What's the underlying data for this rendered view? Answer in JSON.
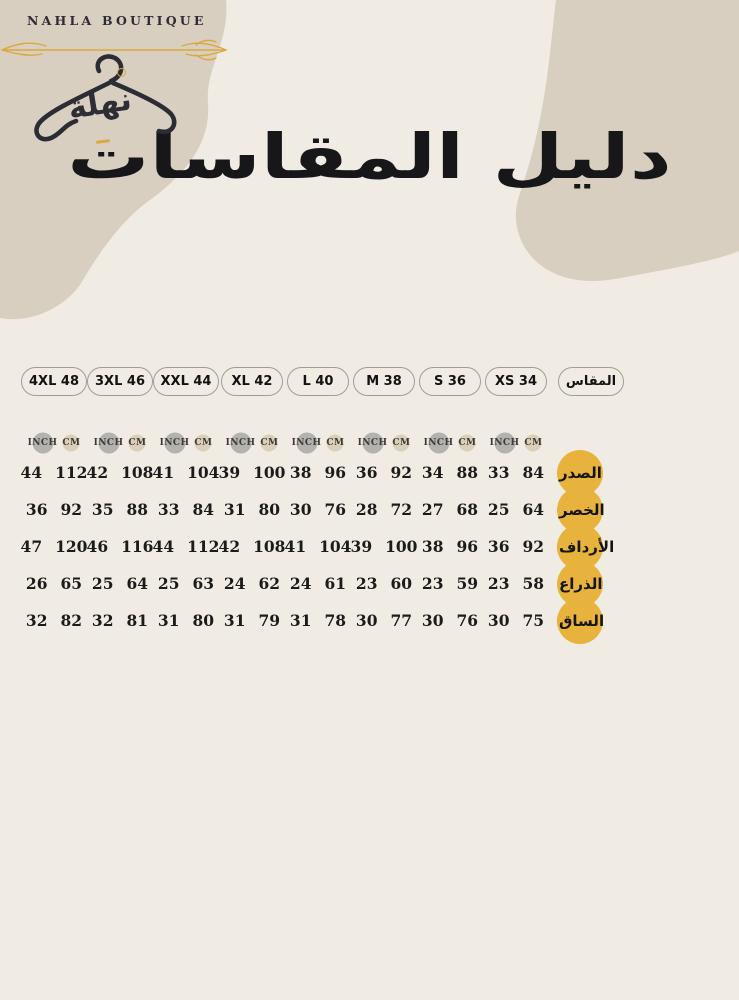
{
  "brand": {
    "name": "NAHLA BOUTIQUE",
    "calligraphy": "نهلة"
  },
  "title": "دليل المقاسات",
  "size_row": {
    "label": "المقاس",
    "sizes": [
      "4XL 48",
      "3XL 46",
      "XXL 44",
      "XL 42",
      "L 40",
      "M 38",
      "S 36",
      "XS 34"
    ]
  },
  "unit_header": {
    "inch": "INCH",
    "cm": "CM"
  },
  "chart_data": {
    "type": "table",
    "columns": [
      "4XL 48",
      "3XL 46",
      "XXL 44",
      "XL 42",
      "L 40",
      "M 38",
      "S 36",
      "XS 34"
    ],
    "unit_pairs": [
      "INCH",
      "CM"
    ],
    "rows": [
      {
        "label": "الصدر",
        "values": [
          [
            44,
            112
          ],
          [
            42,
            108
          ],
          [
            41,
            104
          ],
          [
            39,
            100
          ],
          [
            38,
            96
          ],
          [
            36,
            92
          ],
          [
            34,
            88
          ],
          [
            33,
            84
          ]
        ]
      },
      {
        "label": "الخصر",
        "values": [
          [
            36,
            92
          ],
          [
            35,
            88
          ],
          [
            33,
            84
          ],
          [
            31,
            80
          ],
          [
            30,
            76
          ],
          [
            28,
            72
          ],
          [
            27,
            68
          ],
          [
            25,
            64
          ]
        ]
      },
      {
        "label": "الأرداف",
        "values": [
          [
            47,
            120
          ],
          [
            46,
            116
          ],
          [
            44,
            112
          ],
          [
            42,
            108
          ],
          [
            41,
            104
          ],
          [
            39,
            100
          ],
          [
            38,
            96
          ],
          [
            36,
            92
          ]
        ]
      },
      {
        "label": "الذراع",
        "values": [
          [
            26,
            65
          ],
          [
            25,
            64
          ],
          [
            25,
            63
          ],
          [
            24,
            62
          ],
          [
            24,
            61
          ],
          [
            23,
            60
          ],
          [
            23,
            59
          ],
          [
            23,
            58
          ]
        ]
      },
      {
        "label": "الساق",
        "values": [
          [
            32,
            82
          ],
          [
            32,
            81
          ],
          [
            31,
            80
          ],
          [
            31,
            79
          ],
          [
            31,
            78
          ],
          [
            30,
            77
          ],
          [
            30,
            76
          ],
          [
            30,
            75
          ]
        ]
      }
    ]
  },
  "colors": {
    "base_background": "#f0ece4",
    "blob": "#d9cfc1",
    "accent_gold": "#e8b33c",
    "inch_chip": "#b3b2ae",
    "cm_chip": "#dccfba",
    "flourish_gold": "#d9a93e",
    "pill_border": "#a39e95",
    "ink": "#1b1b1b"
  }
}
